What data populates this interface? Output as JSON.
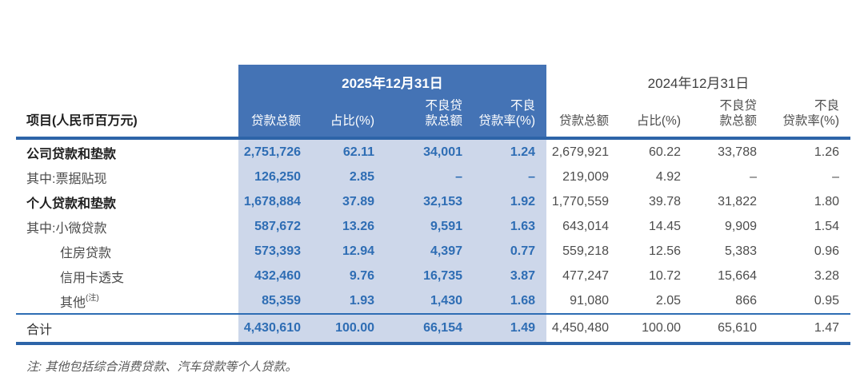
{
  "colors": {
    "header_band": "#4473b5",
    "column_highlight": "#cdd7ea",
    "rule_heavy": "#2d64a8",
    "rule_thin": "#2e6db4",
    "value_2025_text": "#2e6db4",
    "value_2024_text": "#4d4d4d"
  },
  "table": {
    "items_column_header": "项目(人民币百万元)",
    "period_2025": "2025年12月31日",
    "period_2024": "2024年12月31日",
    "column_headers": [
      "贷款总额",
      "占比(%)",
      "不良贷\n款总额",
      "不良\n贷款率(%)"
    ],
    "rows": [
      {
        "label": "公司贷款和垫款",
        "bold": true,
        "indent": false,
        "y2025": [
          "2,751,726",
          "62.11",
          "34,001",
          "1.24"
        ],
        "y2024": [
          "2,679,921",
          "60.22",
          "33,788",
          "1.26"
        ]
      },
      {
        "label": "其中:票据贴现",
        "bold": false,
        "indent": false,
        "y2025": [
          "126,250",
          "2.85",
          "–",
          "–"
        ],
        "y2024": [
          "219,009",
          "4.92",
          "–",
          "–"
        ]
      },
      {
        "label": "个人贷款和垫款",
        "bold": true,
        "indent": false,
        "y2025": [
          "1,678,884",
          "37.89",
          "32,153",
          "1.92"
        ],
        "y2024": [
          "1,770,559",
          "39.78",
          "31,822",
          "1.80"
        ]
      },
      {
        "label": "其中:小微贷款",
        "bold": false,
        "indent": false,
        "y2025": [
          "587,672",
          "13.26",
          "9,591",
          "1.63"
        ],
        "y2024": [
          "643,014",
          "14.45",
          "9,909",
          "1.54"
        ]
      },
      {
        "label": "住房贷款",
        "bold": false,
        "indent": true,
        "y2025": [
          "573,393",
          "12.94",
          "4,397",
          "0.77"
        ],
        "y2024": [
          "559,218",
          "12.56",
          "5,383",
          "0.96"
        ]
      },
      {
        "label": "信用卡透支",
        "bold": false,
        "indent": true,
        "y2025": [
          "432,460",
          "9.76",
          "16,735",
          "3.87"
        ],
        "y2024": [
          "477,247",
          "10.72",
          "15,664",
          "3.28"
        ]
      },
      {
        "label": "其他",
        "sup": "(注)",
        "bold": false,
        "indent": true,
        "y2025": [
          "85,359",
          "1.93",
          "1,430",
          "1.68"
        ],
        "y2024": [
          "91,080",
          "2.05",
          "866",
          "0.95"
        ]
      }
    ],
    "total_row": {
      "label": "合计",
      "bold": false,
      "indent": false,
      "y2025": [
        "4,430,610",
        "100.00",
        "66,154",
        "1.49"
      ],
      "y2024": [
        "4,450,480",
        "100.00",
        "65,610",
        "1.47"
      ]
    }
  },
  "footnote": "注: 其他包括综合消费贷款、汽车贷款等个人贷款。"
}
